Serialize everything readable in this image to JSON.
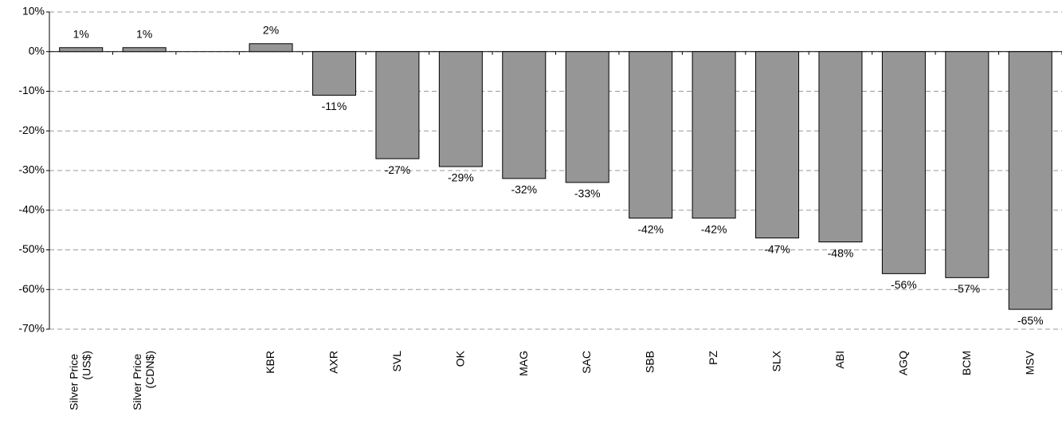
{
  "chart_data": {
    "type": "bar",
    "categories": [
      "Silver Price (US$)",
      "Silver Price (CDN$)",
      null,
      "KBR",
      "AXR",
      "SVL",
      "OK",
      "MAG",
      "SAC",
      "SBB",
      "PZ",
      "SLX",
      "ABI",
      "AGQ",
      "BCM",
      "MSV"
    ],
    "values": [
      1,
      1,
      null,
      2,
      -11,
      -27,
      -29,
      -32,
      -33,
      -42,
      -42,
      -47,
      -48,
      -56,
      -57,
      -65
    ],
    "value_labels": [
      "1%",
      "1%",
      null,
      "2%",
      "-11%",
      "-27%",
      "-29%",
      "-32%",
      "-33%",
      "-42%",
      "-42%",
      "-47%",
      "-48%",
      "-56%",
      "-57%",
      "-65%"
    ],
    "color": "#969696",
    "ylim": [
      -70,
      10
    ],
    "yticks": [
      {
        "value": 10,
        "label": "10%"
      },
      {
        "value": 0,
        "label": "0%"
      },
      {
        "value": -10,
        "label": "-10%"
      },
      {
        "value": -20,
        "label": "-20%"
      },
      {
        "value": -30,
        "label": "-30%"
      },
      {
        "value": -40,
        "label": "-40%"
      },
      {
        "value": -50,
        "label": "-50%"
      },
      {
        "value": -60,
        "label": "-60%"
      },
      {
        "value": -70,
        "label": "-70%"
      }
    ],
    "grid": true
  }
}
